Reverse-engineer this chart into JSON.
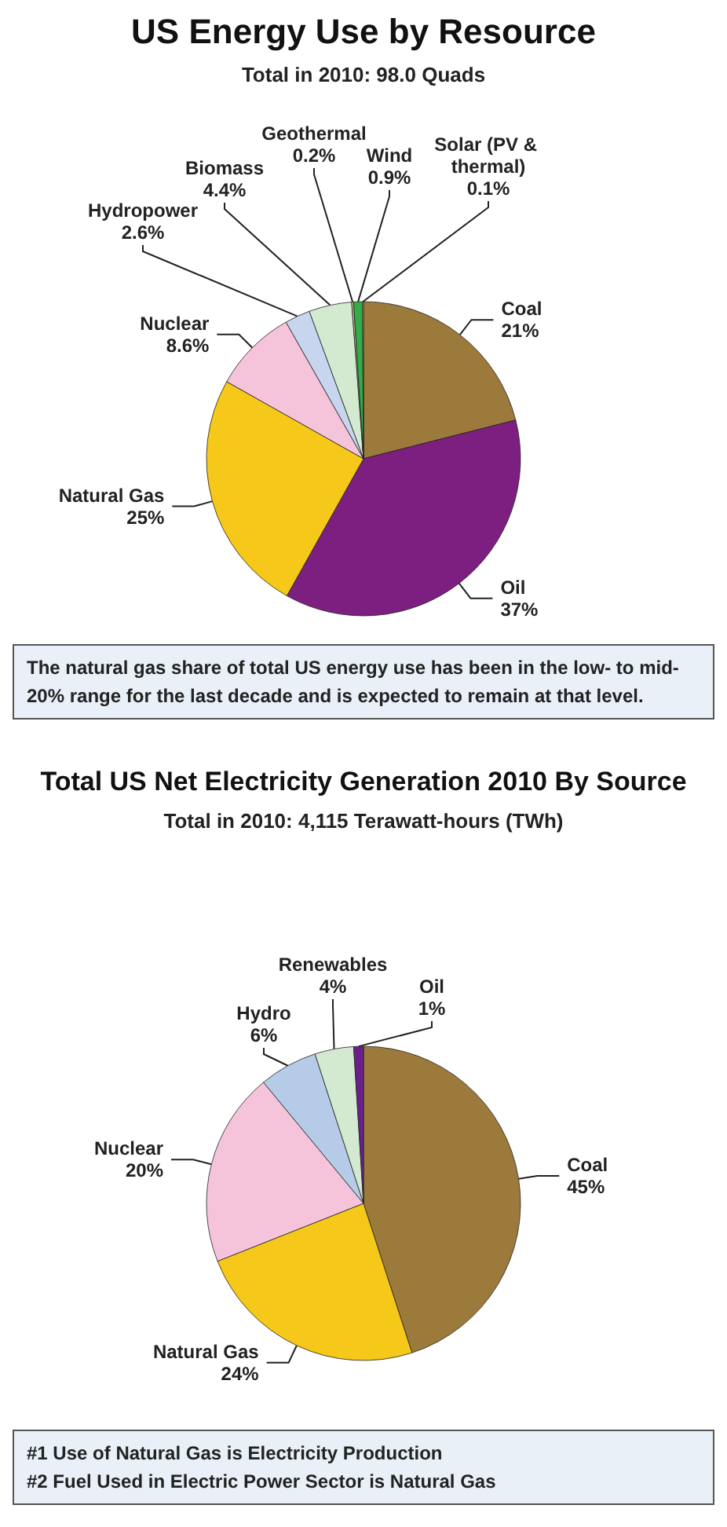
{
  "chart_data": [
    {
      "type": "pie",
      "title": "US Energy Use by Resource",
      "subtitle": "Total in 2010: 98.0 Quads",
      "categories": [
        "Coal",
        "Oil",
        "Natural Gas",
        "Nuclear",
        "Hydropower",
        "Biomass",
        "Geothermal",
        "Wind",
        "Solar (PV & thermal)"
      ],
      "values": [
        21,
        37,
        25,
        8.6,
        2.6,
        4.4,
        0.2,
        0.9,
        0.1
      ],
      "value_labels": [
        "21%",
        "37%",
        "25%",
        "8.6%",
        "2.6%",
        "4.4%",
        "0.2%",
        "0.9%",
        "0.1%"
      ],
      "colors": [
        "#9c7a3c",
        "#7d1f80",
        "#f5c81a",
        "#f6c4da",
        "#c7d5ee",
        "#d3ead0",
        "#c9b98a",
        "#2fae4a",
        "#f2e25a"
      ],
      "annotations": [
        "The natural gas share of total US energy use has been in the low- to mid-20% range for the last decade and is expected to remain at that level."
      ],
      "legend": false
    },
    {
      "type": "pie",
      "title": "Total US Net Electricity Generation 2010 By Source",
      "subtitle": "Total in 2010: 4,115 Terawatt-hours (TWh)",
      "categories": [
        "Coal",
        "Natural Gas",
        "Nuclear",
        "Hydro",
        "Renewables",
        "Oil"
      ],
      "values": [
        45,
        24,
        20,
        6,
        4,
        1
      ],
      "value_labels": [
        "45%",
        "24%",
        "20%",
        "6%",
        "4%",
        "1%"
      ],
      "colors": [
        "#9c7a3c",
        "#f5c81a",
        "#f6c4da",
        "#b5cbe8",
        "#d3ead0",
        "#6a1f8a"
      ],
      "annotations": [
        "#1 Use of Natural Gas is Electricity Production",
        "#2 Fuel Used in Electric Power Sector is Natural Gas"
      ],
      "legend": false
    }
  ]
}
